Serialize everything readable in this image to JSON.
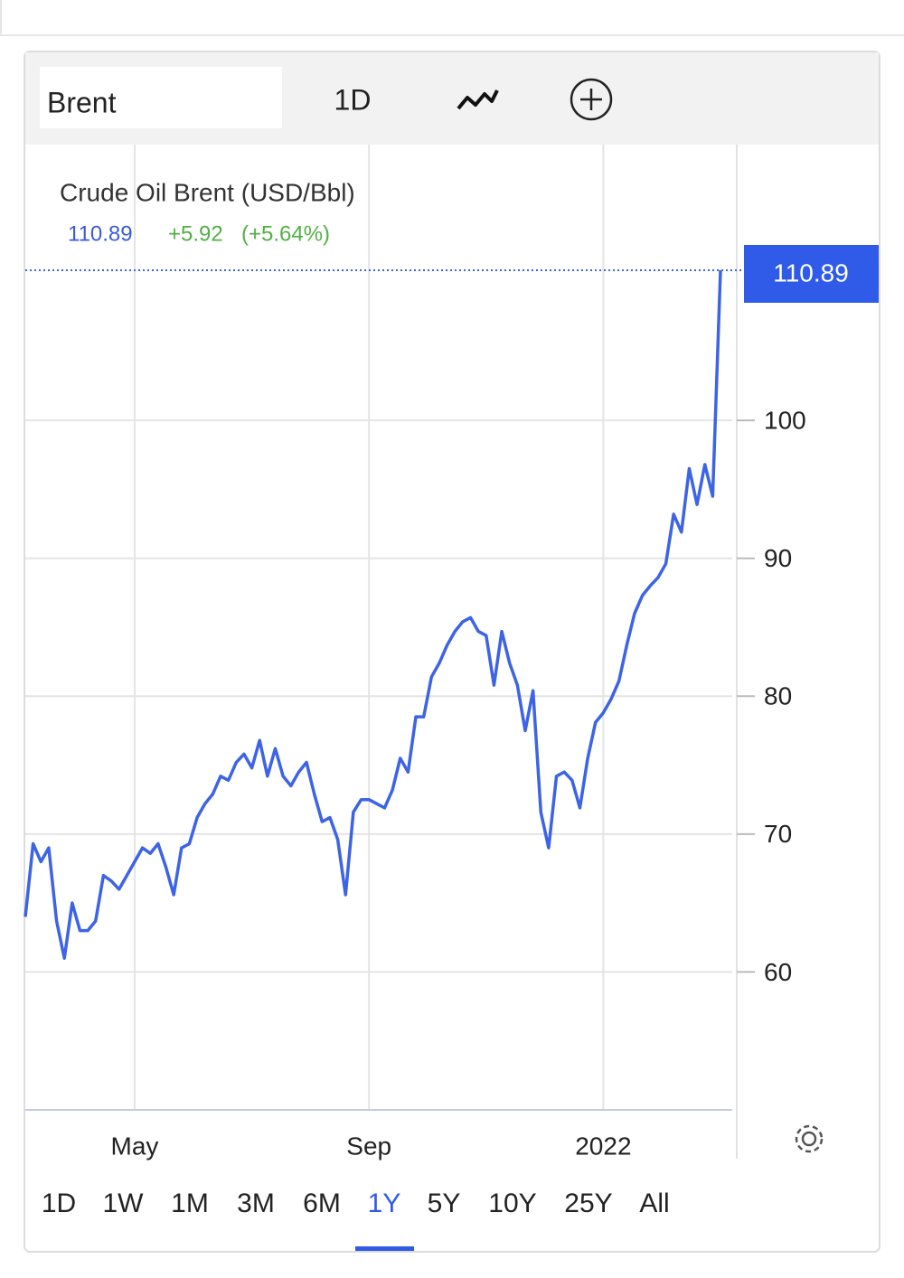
{
  "ui": {
    "instrument": "Brent",
    "interval": "1D",
    "ranges": [
      "1D",
      "1W",
      "1M",
      "3M",
      "6M",
      "1Y",
      "5Y",
      "10Y",
      "25Y",
      "All"
    ],
    "selected_range": 5
  },
  "chart_data": {
    "type": "line",
    "title": "Crude Oil Brent (USD/Bbl)",
    "price": "110.89",
    "change": "+5.92",
    "change_pct": "(+5.64%)",
    "categories": [
      null,
      null,
      null,
      null,
      null,
      null,
      null,
      null,
      null,
      null,
      null,
      null,
      null,
      null,
      "May",
      null,
      null,
      null,
      null,
      null,
      null,
      null,
      null,
      null,
      null,
      null,
      null,
      null,
      null,
      null,
      null,
      null,
      null,
      null,
      null,
      null,
      null,
      null,
      null,
      null,
      null,
      null,
      null,
      null,
      "Sep",
      null,
      null,
      null,
      null,
      null,
      null,
      null,
      null,
      null,
      null,
      null,
      null,
      null,
      null,
      null,
      null,
      null,
      null,
      null,
      null,
      null,
      null,
      null,
      null,
      null,
      null,
      null,
      null,
      null,
      "2022",
      null,
      null,
      null,
      null,
      null,
      null,
      null,
      null,
      null,
      null,
      null,
      null,
      null,
      null,
      null
    ],
    "series": [
      {
        "name": "Brent",
        "color": "#3d63e6",
        "values": [
          64,
          69.3,
          68,
          69,
          63.7,
          61,
          65,
          63,
          63,
          63.7,
          67,
          66.6,
          66,
          67,
          68,
          69,
          68.6,
          69.3,
          67.6,
          65.6,
          69,
          69.3,
          71.2,
          72.2,
          72.9,
          74.2,
          73.9,
          75.2,
          75.8,
          74.8,
          76.8,
          74.2,
          76.2,
          74.2,
          73.5,
          74.5,
          75.2,
          72.9,
          70.9,
          71.2,
          69.6,
          65.6,
          71.6,
          72.5,
          72.5,
          72.2,
          71.9,
          73.2,
          75.5,
          74.5,
          78.5,
          78.5,
          81.4,
          82.4,
          83.7,
          84.7,
          85.4,
          85.7,
          84.7,
          84.4,
          80.8,
          84.7,
          82.4,
          80.8,
          77.5,
          80.4,
          71.6,
          69,
          74.2,
          74.5,
          73.9,
          71.9,
          75.5,
          78.1,
          78.8,
          79.8,
          81.1,
          83.7,
          86,
          87.3,
          88,
          88.6,
          89.6,
          93.2,
          91.9,
          96.5,
          93.9,
          96.8,
          94.5,
          110.89
        ]
      }
    ],
    "ylim": [
      50,
      120
    ],
    "yticks": [
      60,
      70,
      80,
      90,
      100
    ],
    "grid": true
  }
}
